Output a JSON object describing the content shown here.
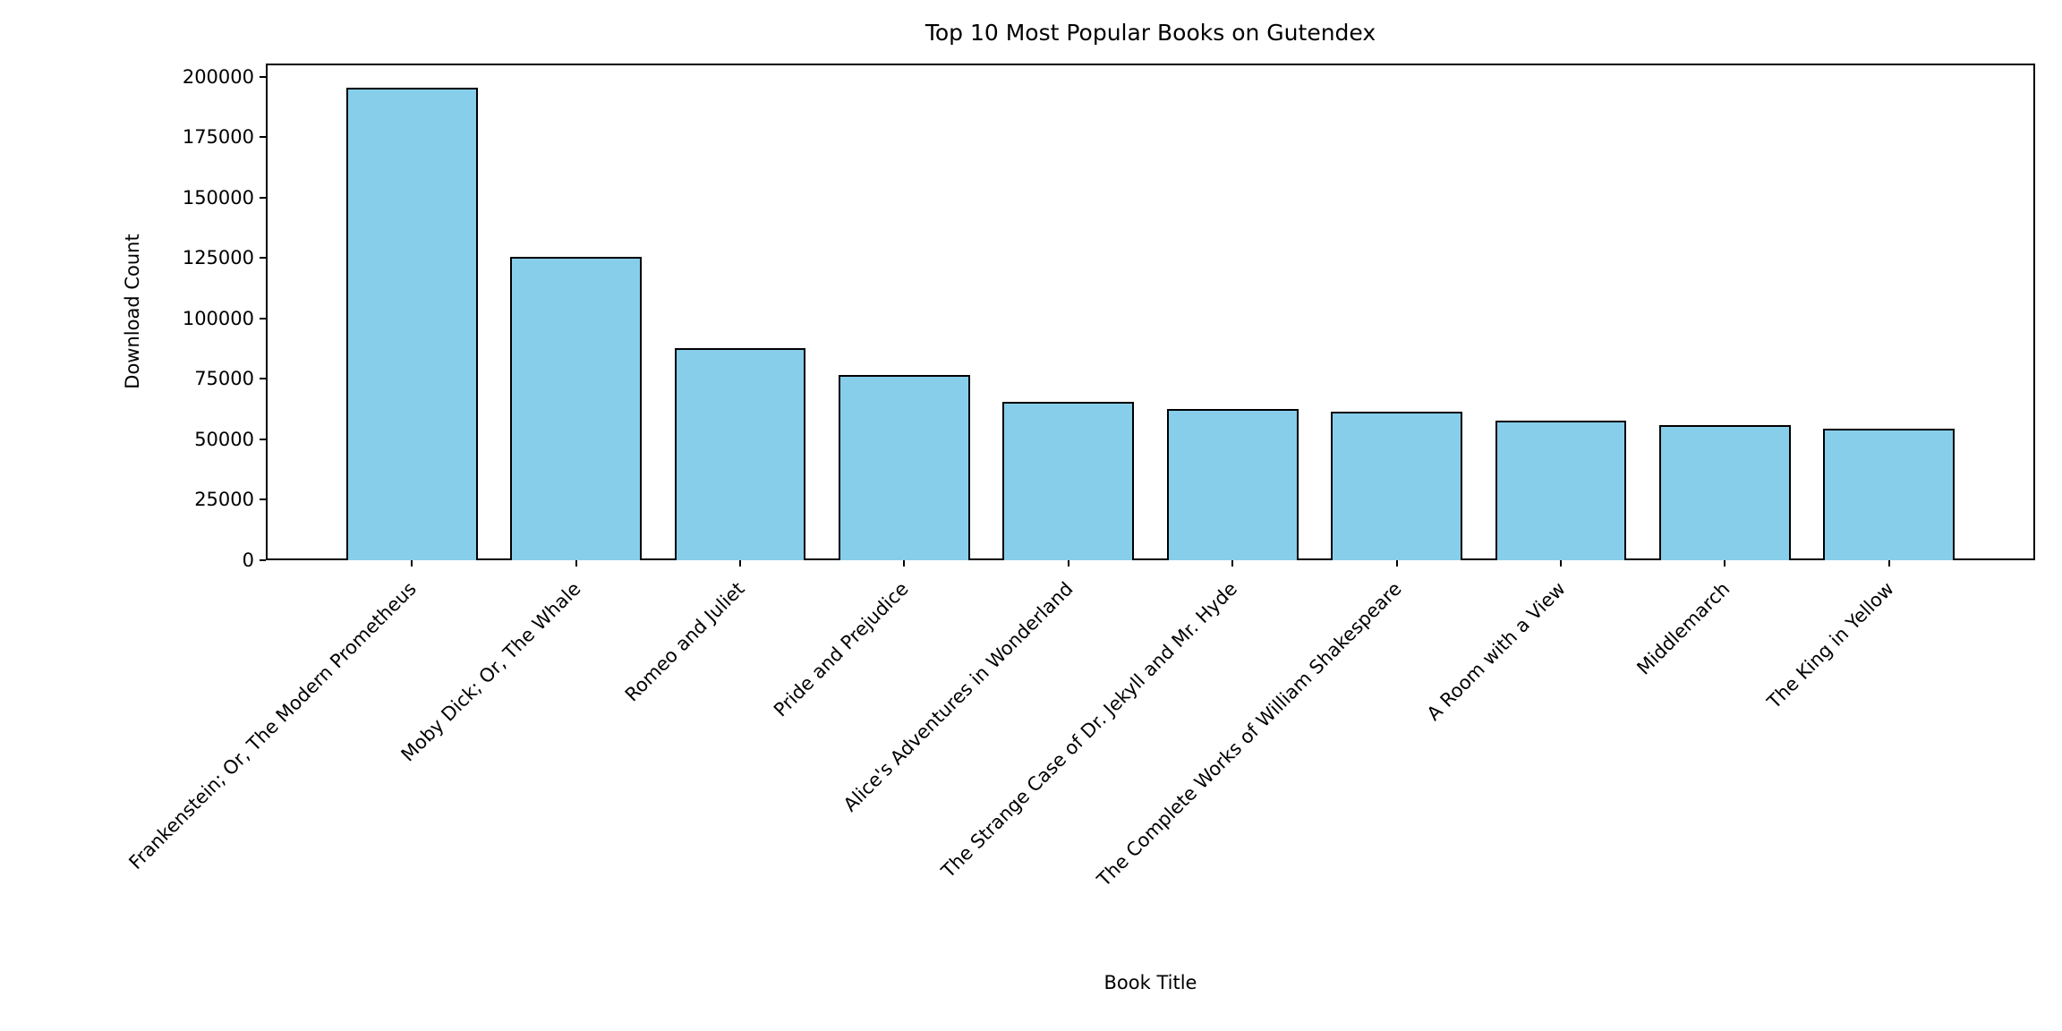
{
  "chart_data": {
    "type": "bar",
    "title": "Top 10 Most Popular Books on Gutendex",
    "xlabel": "Book Title",
    "ylabel": "Download Count",
    "categories": [
      "Frankenstein; Or, The Modern Prometheus",
      "Moby Dick; Or, The Whale",
      "Romeo and Juliet",
      "Pride and Prejudice",
      "Alice's Adventures in Wonderland",
      "The Strange Case of Dr. Jekyll and Mr. Hyde",
      "The Complete Works of William Shakespeare",
      "A Room with a View",
      "Middlemarch",
      "The King in Yellow"
    ],
    "values": [
      195600,
      125700,
      87600,
      76600,
      65500,
      62600,
      61500,
      57800,
      55900,
      54600
    ],
    "yticks": [
      0,
      25000,
      50000,
      75000,
      100000,
      125000,
      150000,
      175000,
      200000
    ],
    "ylim": [
      0,
      205500
    ],
    "grid": false,
    "legend": "none",
    "xtick_rotation_deg": 45,
    "bar_color": "#87CEEB",
    "bar_edge_color": "#000000",
    "text_color": "#000000"
  }
}
